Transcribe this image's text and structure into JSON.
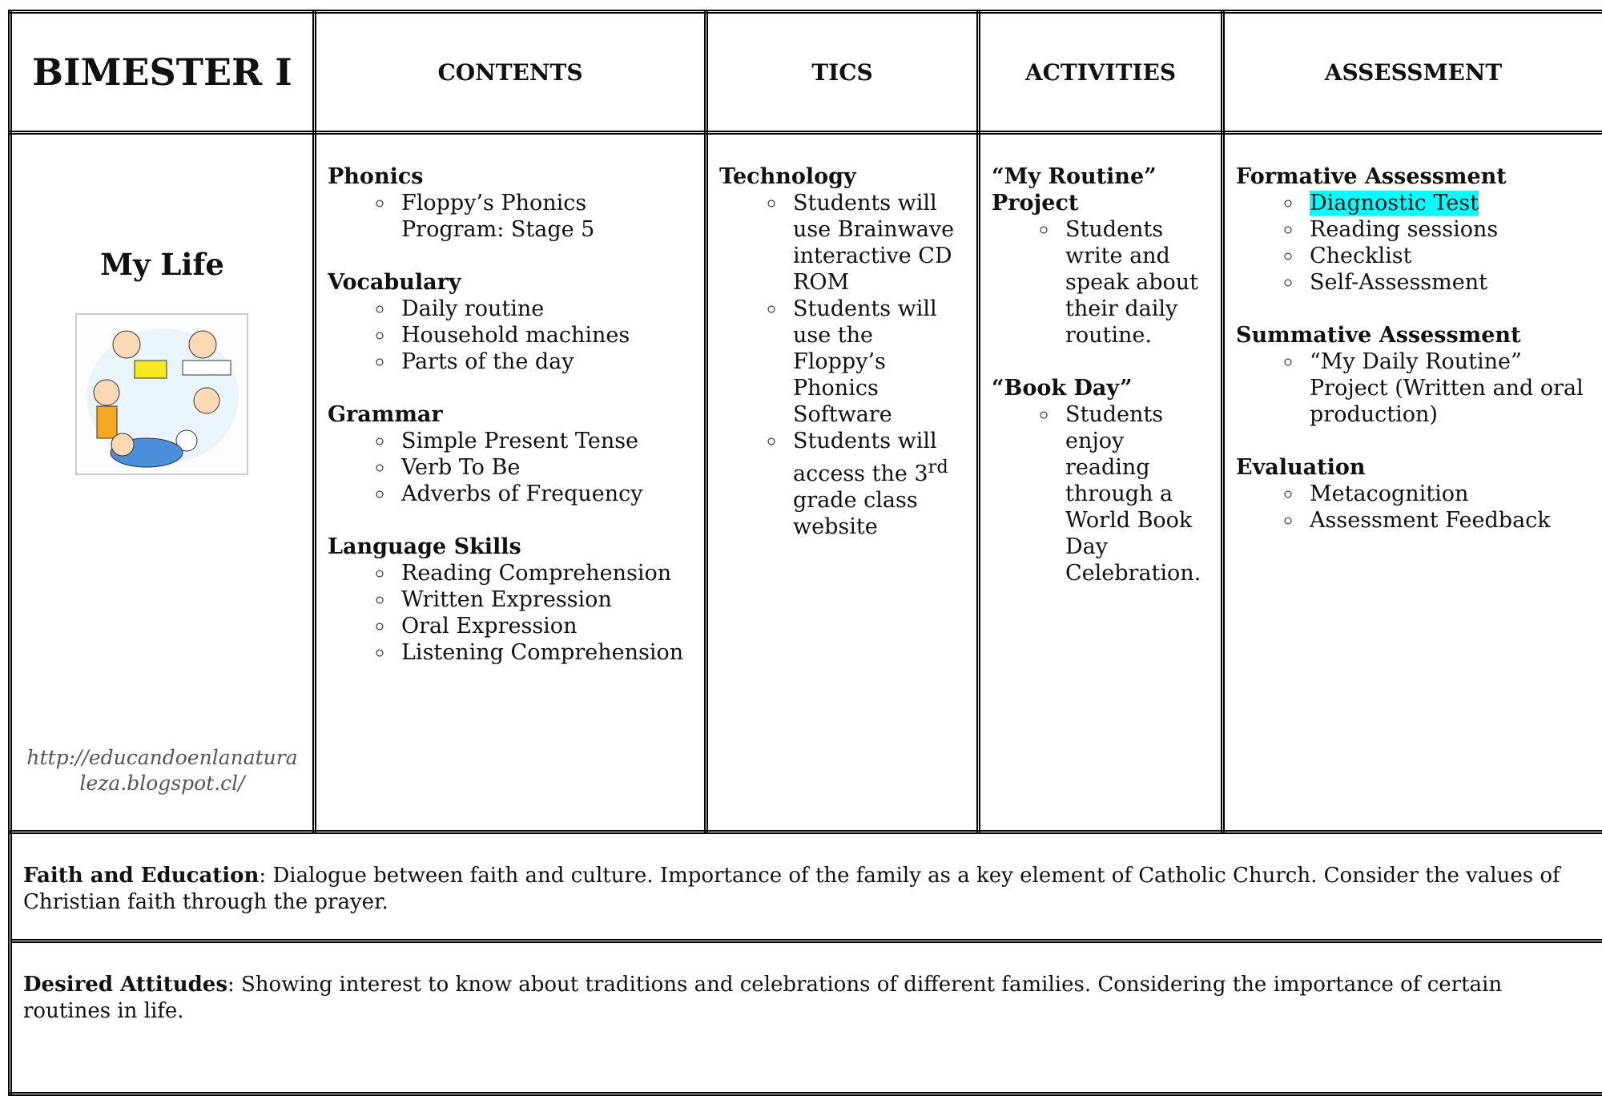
{
  "header": {
    "title": "BIMESTER I",
    "columns": [
      "CONTENTS",
      "TICS",
      "ACTIVITIES",
      "ASSESSMENT"
    ]
  },
  "unit": {
    "title": "My Life",
    "credit": "http://educandoenlanaturaleza.blogspot.cl/"
  },
  "contents": [
    {
      "heading": "Phonics",
      "items": [
        "Floppy’s Phonics Program: Stage 5"
      ]
    },
    {
      "heading": "Vocabulary",
      "items": [
        "Daily routine",
        "Household machines",
        "Parts of the day"
      ]
    },
    {
      "heading": "Grammar",
      "items": [
        "Simple Present Tense",
        "Verb To Be",
        "Adverbs of Frequency"
      ]
    },
    {
      "heading": "Language Skills",
      "items": [
        "Reading Comprehension",
        "Written Expression",
        "Oral Expression",
        "Listening Comprehension"
      ]
    }
  ],
  "tics": [
    {
      "heading": "Technology",
      "items": [
        "Students will use Brainwave interactive CD ROM",
        "Students will use the Floppy’s Phonics Software",
        {
          "text": "Students will access the 3",
          "sup": "rd",
          "after": " grade class website"
        }
      ]
    }
  ],
  "activities": [
    {
      "heading": "“My Routine” Project",
      "items": [
        "Students write and speak about their daily routine."
      ]
    },
    {
      "heading": "“Book Day”",
      "items": [
        "Students enjoy reading through a World Book Day Celebration."
      ]
    }
  ],
  "assessment": [
    {
      "heading": "Formative Assessment",
      "items": [
        "Diagnostic Test",
        "Reading sessions",
        "Checklist",
        "Self-Assessment"
      ],
      "highlight": [
        0
      ]
    },
    {
      "heading": "Summative Assessment",
      "items": [
        "“My Daily Routine” Project (Written and oral production)"
      ]
    },
    {
      "heading": "Evaluation",
      "items": [
        "Metacognition",
        "Assessment Feedback"
      ]
    }
  ],
  "footer": [
    {
      "label": "Faith and Education",
      "text": ":  Dialogue between faith and culture. Importance of the family as a key element of Catholic Church. Consider the values of Christian faith through the prayer."
    },
    {
      "label": "Desired Attitudes",
      "text": ":  Showing interest to know about traditions and celebrations of different families. Considering the importance of certain routines in life."
    }
  ]
}
